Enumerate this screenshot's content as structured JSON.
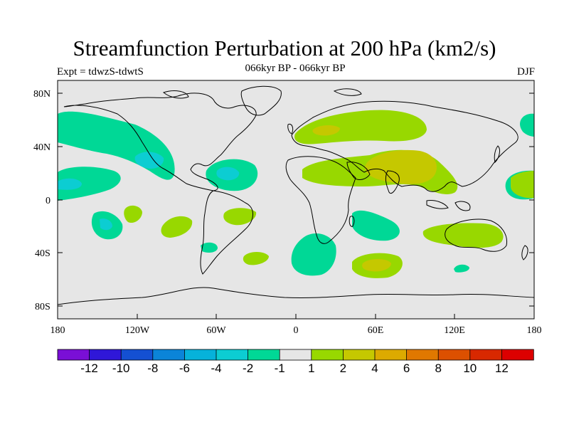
{
  "title": "Streamfunction Perturbation at 200 hPa (km2/s)",
  "subtitle_left": "Expt = tdwzS-tdwtS",
  "subtitle_center": "066kyr BP - 066kyr BP",
  "subtitle_right": "DJF",
  "lat_labels": [
    "80N",
    "40N",
    "0",
    "40S",
    "80S"
  ],
  "lon_labels": [
    "180",
    "120W",
    "60W",
    "0",
    "60E",
    "120E",
    "180"
  ],
  "colorbar": {
    "colors": [
      "#7a0fd6",
      "#2f17d8",
      "#1450d2",
      "#0b84d8",
      "#06b2da",
      "#0ccdd2",
      "#00d896",
      "#e6e6e6",
      "#98d800",
      "#c5c800",
      "#dcaa00",
      "#e07800",
      "#dc5000",
      "#d82800",
      "#dc0000"
    ],
    "labels": [
      "-12",
      "-10",
      "-8",
      "-6",
      "-4",
      "-2",
      "-1",
      "1",
      "2",
      "4",
      "6",
      "8",
      "10",
      "12"
    ]
  },
  "colors": {
    "background": "#e6e6e6",
    "neg1": "#00d896",
    "neg2": "#0ccdd2",
    "pos1": "#98d800",
    "pos2": "#c5c800",
    "pos3": "#dcaa00"
  }
}
